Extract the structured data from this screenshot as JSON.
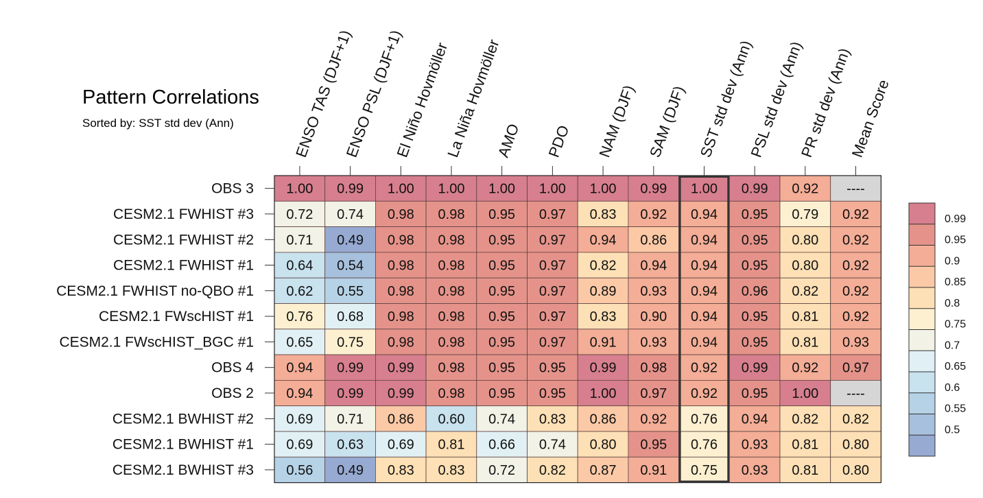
{
  "chart_data": {
    "type": "heatmap",
    "title": "Pattern Correlations",
    "subtitle": "Sorted by: SST std dev (Ann)",
    "columns": [
      "ENSO TAS (DJF+1)",
      "ENSO PSL (DJF+1)",
      "El Niño Hovmöller",
      "La Niña Hovmöller",
      "AMO",
      "PDO",
      "NAM (DJF)",
      "SAM (DJF)",
      "SST std dev (Ann)",
      "PSL std dev (Ann)",
      "PR std dev (Ann)",
      "Mean Score"
    ],
    "highlighted_column": "SST std dev (Ann)",
    "rows": [
      "OBS 3",
      "CESM2.1 FWHIST #3",
      "CESM2.1 FWHIST #2",
      "CESM2.1 FWHIST #1",
      "CESM2.1 FWHIST no-QBO #1",
      "CESM2.1 FWscHIST #1",
      "CESM2.1 FWscHIST_BGC #1",
      "OBS 4",
      "OBS 2",
      "CESM2.1 BWHIST #2",
      "CESM2.1 BWHIST #1",
      "CESM2.1 BWHIST #3"
    ],
    "values": [
      [
        "1.00",
        "0.99",
        "1.00",
        "1.00",
        "1.00",
        "1.00",
        "1.00",
        "0.99",
        "1.00",
        "0.99",
        "0.92",
        "----"
      ],
      [
        "0.72",
        "0.74",
        "0.98",
        "0.98",
        "0.95",
        "0.97",
        "0.83",
        "0.92",
        "0.94",
        "0.95",
        "0.79",
        "0.92"
      ],
      [
        "0.71",
        "0.49",
        "0.98",
        "0.98",
        "0.95",
        "0.97",
        "0.94",
        "0.86",
        "0.94",
        "0.95",
        "0.80",
        "0.92"
      ],
      [
        "0.64",
        "0.54",
        "0.98",
        "0.98",
        "0.95",
        "0.97",
        "0.82",
        "0.94",
        "0.94",
        "0.95",
        "0.80",
        "0.92"
      ],
      [
        "0.62",
        "0.55",
        "0.98",
        "0.98",
        "0.95",
        "0.97",
        "0.89",
        "0.93",
        "0.94",
        "0.96",
        "0.82",
        "0.92"
      ],
      [
        "0.76",
        "0.68",
        "0.98",
        "0.98",
        "0.95",
        "0.97",
        "0.83",
        "0.90",
        "0.94",
        "0.95",
        "0.81",
        "0.92"
      ],
      [
        "0.65",
        "0.75",
        "0.98",
        "0.98",
        "0.95",
        "0.97",
        "0.91",
        "0.93",
        "0.94",
        "0.95",
        "0.81",
        "0.93"
      ],
      [
        "0.94",
        "0.99",
        "0.99",
        "0.98",
        "0.95",
        "0.95",
        "0.99",
        "0.98",
        "0.92",
        "0.99",
        "0.92",
        "0.97"
      ],
      [
        "0.94",
        "0.99",
        "0.99",
        "0.98",
        "0.95",
        "0.95",
        "1.00",
        "0.97",
        "0.92",
        "0.95",
        "1.00",
        "----"
      ],
      [
        "0.69",
        "0.71",
        "0.86",
        "0.60",
        "0.74",
        "0.83",
        "0.86",
        "0.92",
        "0.76",
        "0.94",
        "0.82",
        "0.82"
      ],
      [
        "0.69",
        "0.63",
        "0.69",
        "0.81",
        "0.66",
        "0.74",
        "0.80",
        "0.95",
        "0.76",
        "0.93",
        "0.81",
        "0.80"
      ],
      [
        "0.56",
        "0.49",
        "0.83",
        "0.83",
        "0.72",
        "0.82",
        "0.87",
        "0.91",
        "0.75",
        "0.93",
        "0.81",
        "0.80"
      ]
    ],
    "missing_value": "----",
    "colorbar": {
      "labels": [
        "0.99",
        "0.95",
        "0.9",
        "0.85",
        "0.8",
        "0.75",
        "0.7",
        "0.65",
        "0.6",
        "0.55",
        "0.5"
      ],
      "thresholds": [
        0.99,
        0.95,
        0.9,
        0.85,
        0.8,
        0.75,
        0.7,
        0.65,
        0.6,
        0.55,
        0.5
      ],
      "colors": [
        "#d77f8e",
        "#e5938a",
        "#f4ad96",
        "#fbc9a6",
        "#fde0b5",
        "#fcf0d0",
        "#f2f2e6",
        "#e1f0f4",
        "#c8e2ee",
        "#b5d2e6",
        "#a7c0dd",
        "#96aad2"
      ],
      "missing_color": "#d6d6d6",
      "highlight_color": "#333333"
    }
  }
}
